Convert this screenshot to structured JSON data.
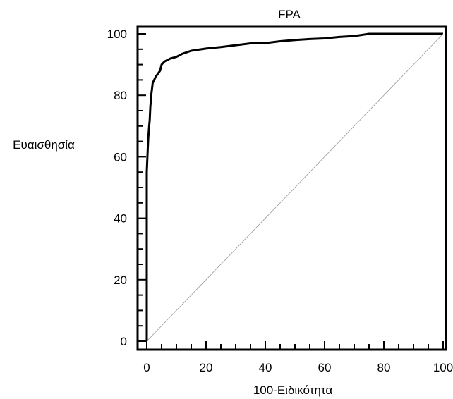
{
  "chart_data": {
    "type": "line",
    "title": "FPA",
    "xlabel": "100-Ειδικότητα",
    "ylabel": "Ευαισθησία",
    "xlim": [
      0,
      100
    ],
    "ylim": [
      0,
      100
    ],
    "xticks": [
      0,
      20,
      40,
      60,
      80,
      100
    ],
    "yticks": [
      0,
      20,
      40,
      60,
      80,
      100
    ],
    "xtick_labels": [
      "0",
      "20",
      "40",
      "60",
      "80",
      "100"
    ],
    "ytick_labels": [
      "0",
      "20",
      "40",
      "60",
      "80",
      "100"
    ],
    "grid": false,
    "series": [
      {
        "role": "roc-curve",
        "color": "#000000",
        "x": [
          0,
          0,
          0.3,
          0.5,
          0.8,
          1,
          1.2,
          1.5,
          2,
          2.5,
          3,
          4.5,
          5,
          6,
          8,
          10,
          12,
          15,
          20,
          25,
          30,
          35,
          40,
          45,
          50,
          55,
          60,
          65,
          70,
          75,
          80,
          85,
          90,
          95,
          100
        ],
        "y": [
          0,
          55,
          62,
          66,
          70,
          72,
          76,
          80,
          84,
          85,
          86,
          88,
          90,
          91,
          92,
          92.5,
          93.5,
          94.5,
          95.2,
          95.7,
          96.3,
          96.9,
          97,
          97.6,
          98,
          98.3,
          98.5,
          99,
          99.3,
          100,
          100,
          100,
          100,
          100,
          100
        ]
      },
      {
        "role": "reference-diagonal",
        "color": "#999999",
        "x": [
          0,
          100
        ],
        "y": [
          0,
          100
        ]
      }
    ]
  }
}
